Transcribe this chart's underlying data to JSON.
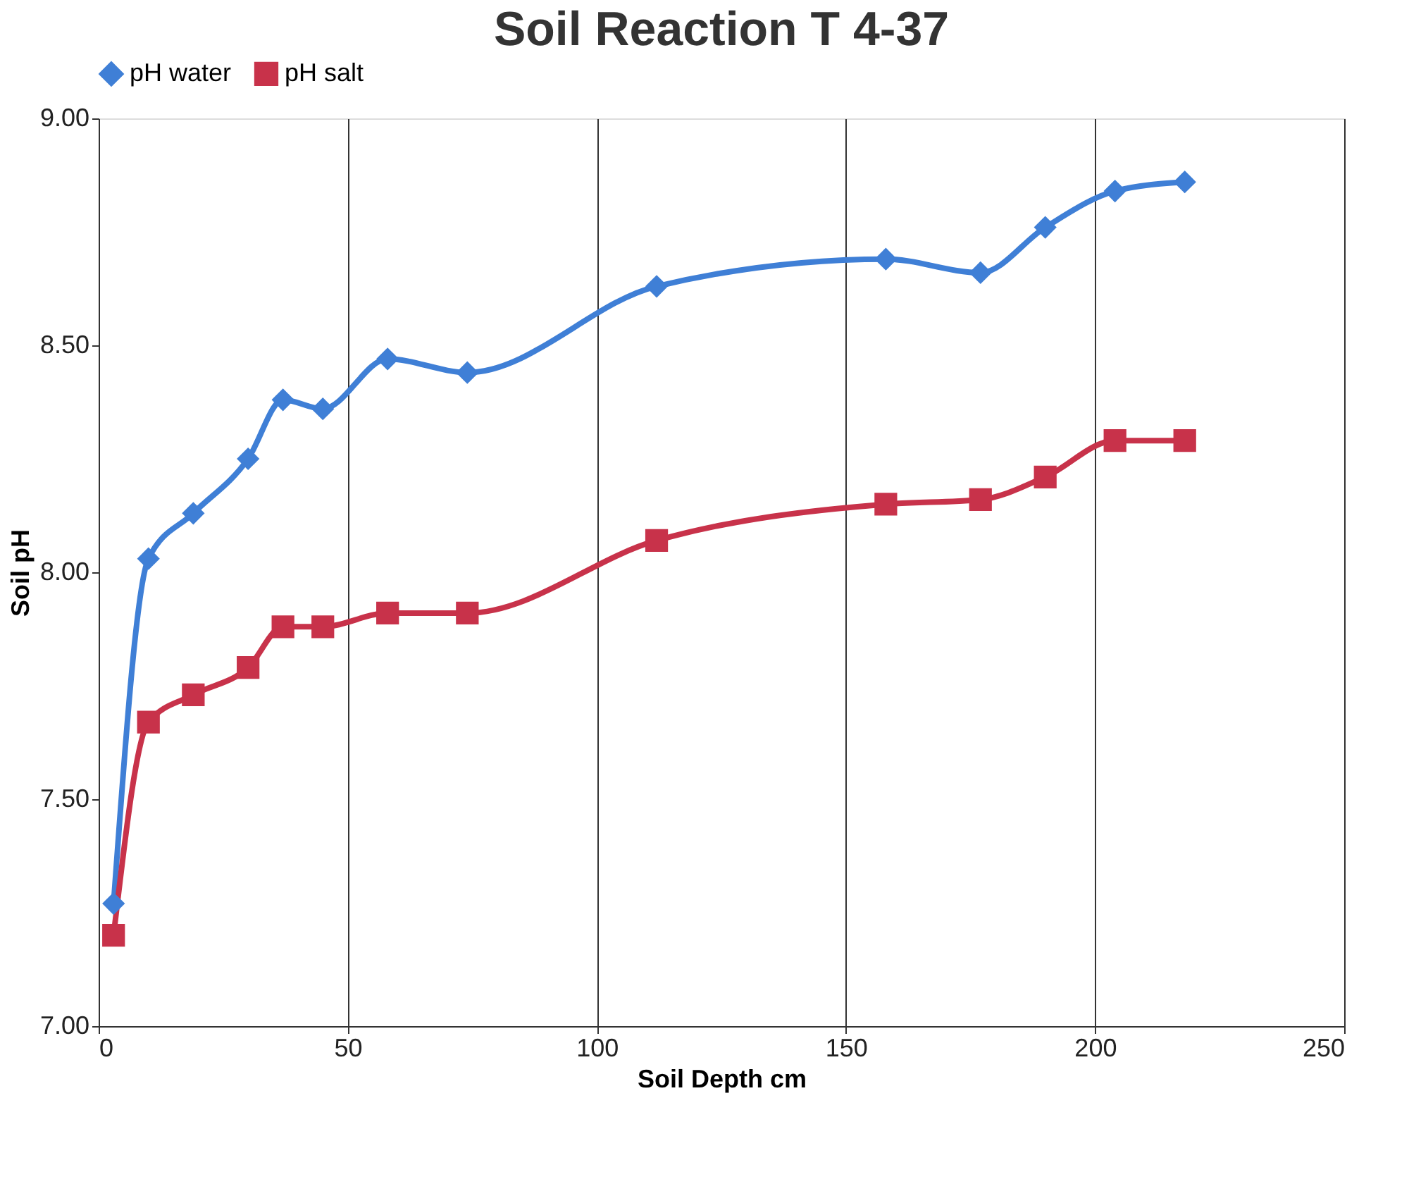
{
  "chart_data": {
    "type": "line",
    "title": "Soil Reaction T 4-37",
    "xlabel": "Soil Depth cm",
    "ylabel": "Soil pH",
    "x": [
      3,
      10,
      19,
      30,
      37,
      45,
      58,
      74,
      112,
      158,
      177,
      190,
      204,
      218
    ],
    "series": [
      {
        "name": "pH water",
        "color": "#3f7fd6",
        "marker": "diamond",
        "values": [
          7.27,
          8.03,
          8.13,
          8.25,
          8.38,
          8.36,
          8.47,
          8.44,
          8.63,
          8.69,
          8.66,
          8.76,
          8.84,
          8.86
        ]
      },
      {
        "name": "pH salt",
        "color": "#c8324a",
        "marker": "square",
        "values": [
          7.2,
          7.67,
          7.73,
          7.79,
          7.88,
          7.88,
          7.91,
          7.91,
          8.07,
          8.15,
          8.16,
          8.21,
          8.29,
          8.29
        ]
      }
    ],
    "xlim": [
      0,
      250
    ],
    "xticks": [
      0,
      50,
      100,
      150,
      200,
      250
    ],
    "ylim": [
      7.0,
      9.0
    ],
    "yticks": [
      {
        "value": 7.0,
        "label": "7.00"
      },
      {
        "value": 7.5,
        "label": "7.50"
      },
      {
        "value": 8.0,
        "label": "8.00"
      },
      {
        "value": 8.5,
        "label": "8.50"
      },
      {
        "value": 9.0,
        "label": "9.00"
      }
    ],
    "grid": "x",
    "legend": "top",
    "line_style": "solid"
  }
}
